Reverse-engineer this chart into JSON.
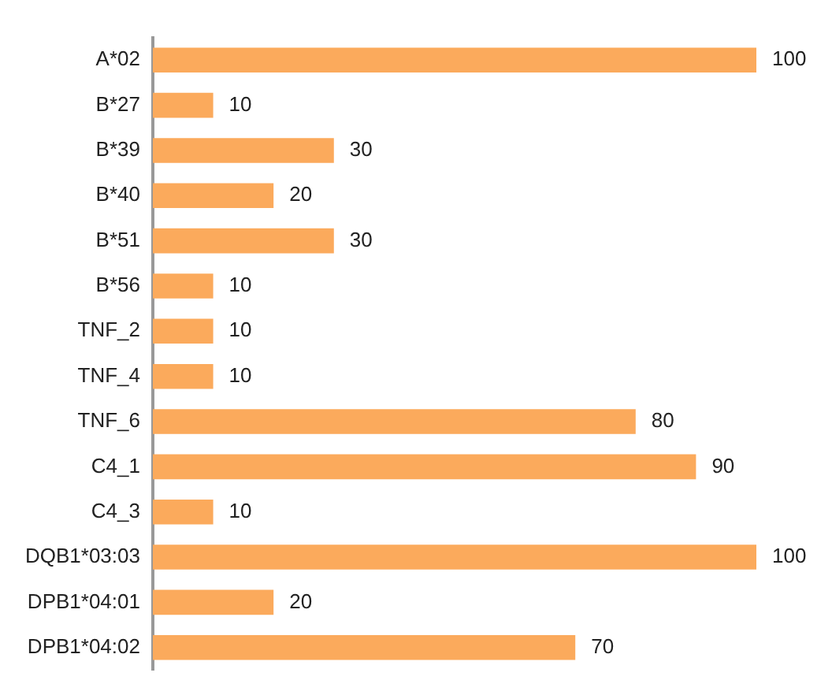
{
  "chart_data": {
    "type": "bar",
    "orientation": "horizontal",
    "categories": [
      "A*02",
      "B*27",
      "B*39",
      "B*40",
      "B*51",
      "B*56",
      "TNF_2",
      "TNF_4",
      "TNF_6",
      "C4_1",
      "C4_3",
      "DQB1*03:03",
      "DPB1*04:01",
      "DPB1*04:02"
    ],
    "values": [
      100,
      10,
      30,
      20,
      30,
      10,
      10,
      10,
      80,
      90,
      10,
      100,
      20,
      70
    ],
    "color": "#fbaa5c",
    "data_labels": true,
    "legend": false
  }
}
